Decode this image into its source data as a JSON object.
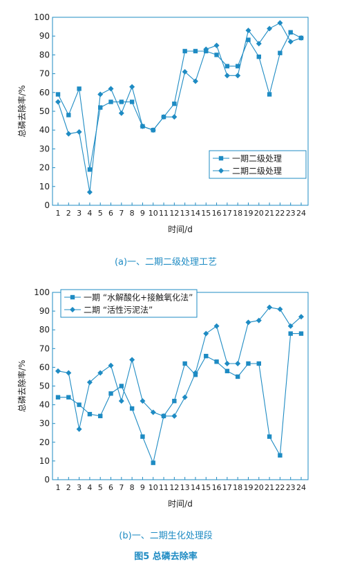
{
  "figure_caption": "图5  总磷去除率",
  "colors": {
    "accent": "#1e8bc3",
    "axis": "#1e8bc3",
    "text": "#1a1a1a"
  },
  "chart_data": [
    {
      "type": "line",
      "caption": "(a)一、二期二级处理工艺",
      "xlabel": "时间/d",
      "ylabel": "总磷去除率/%",
      "ylim": [
        0,
        100
      ],
      "yticks": [
        0,
        10,
        20,
        30,
        40,
        50,
        60,
        70,
        80,
        90,
        100
      ],
      "x": [
        1,
        2,
        3,
        4,
        5,
        6,
        7,
        8,
        9,
        10,
        11,
        12,
        13,
        14,
        15,
        16,
        17,
        18,
        19,
        20,
        21,
        22,
        23,
        24
      ],
      "grid": false,
      "legend_position": "bottom-right",
      "series": [
        {
          "name": "一期二级处理",
          "marker": "square",
          "values": [
            59,
            48,
            62,
            19,
            52,
            55,
            55,
            55,
            42,
            40,
            47,
            54,
            82,
            82,
            82,
            80,
            74,
            74,
            88,
            79,
            59,
            81,
            92,
            89
          ]
        },
        {
          "name": "二期二级处理",
          "marker": "diamond",
          "values": [
            55,
            38,
            39,
            7,
            59,
            62,
            49,
            63,
            42,
            40,
            47,
            47,
            71,
            66,
            83,
            85,
            69,
            69,
            93,
            86,
            94,
            97,
            87,
            89
          ]
        }
      ]
    },
    {
      "type": "line",
      "caption": "(b)一、二期生化处理段",
      "xlabel": "时间/d",
      "ylabel": "总磷去除率/%",
      "ylim": [
        0,
        100
      ],
      "yticks": [
        0,
        10,
        20,
        30,
        40,
        50,
        60,
        70,
        80,
        90,
        100
      ],
      "x": [
        1,
        2,
        3,
        4,
        5,
        6,
        7,
        8,
        9,
        10,
        11,
        12,
        13,
        14,
        15,
        16,
        17,
        18,
        19,
        20,
        21,
        22,
        23,
        24
      ],
      "grid": false,
      "legend_position": "top-left",
      "series": [
        {
          "name": "一期 “水解酸化+接触氧化法”",
          "marker": "square",
          "values": [
            44,
            44,
            40,
            35,
            34,
            46,
            50,
            38,
            23,
            9,
            34,
            42,
            62,
            56,
            66,
            63,
            58,
            55,
            62,
            62,
            23,
            13,
            78,
            78
          ]
        },
        {
          "name": "二期 “活性污泥法”",
          "marker": "diamond",
          "values": [
            58,
            57,
            27,
            52,
            57,
            61,
            42,
            64,
            42,
            36,
            34,
            34,
            44,
            57,
            78,
            82,
            62,
            62,
            84,
            85,
            92,
            91,
            82,
            87
          ]
        }
      ]
    }
  ]
}
